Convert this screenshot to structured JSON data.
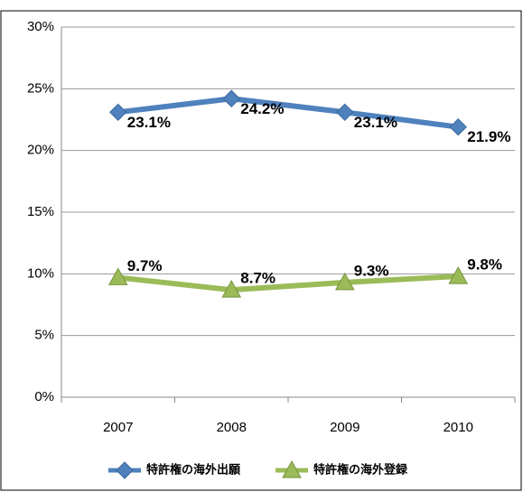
{
  "chart_data": {
    "type": "line",
    "categories": [
      "2007",
      "2008",
      "2009",
      "2010"
    ],
    "series": [
      {
        "name": "特許権の海外出願",
        "color": "#4f81bd",
        "marker": "diamond",
        "values": [
          23.1,
          24.2,
          23.1,
          21.9
        ],
        "value_labels": [
          "23.1%",
          "24.2%",
          "23.1%",
          "21.9%"
        ]
      },
      {
        "name": "特許権の海外登録",
        "color": "#9bbb59",
        "marker": "triangle",
        "values": [
          9.7,
          8.7,
          9.3,
          9.8
        ],
        "value_labels": [
          "9.7%",
          "8.7%",
          "9.3%",
          "9.8%"
        ]
      }
    ],
    "ylim": [
      0,
      30
    ],
    "yticks": [
      {
        "value": 0,
        "label": "0%"
      },
      {
        "value": 5,
        "label": "5%"
      },
      {
        "value": 10,
        "label": "10%"
      },
      {
        "value": 15,
        "label": "15%"
      },
      {
        "value": 20,
        "label": "20%"
      },
      {
        "value": 25,
        "label": "25%"
      },
      {
        "value": 30,
        "label": "30%"
      }
    ],
    "grid": true,
    "legend": "bottom"
  }
}
